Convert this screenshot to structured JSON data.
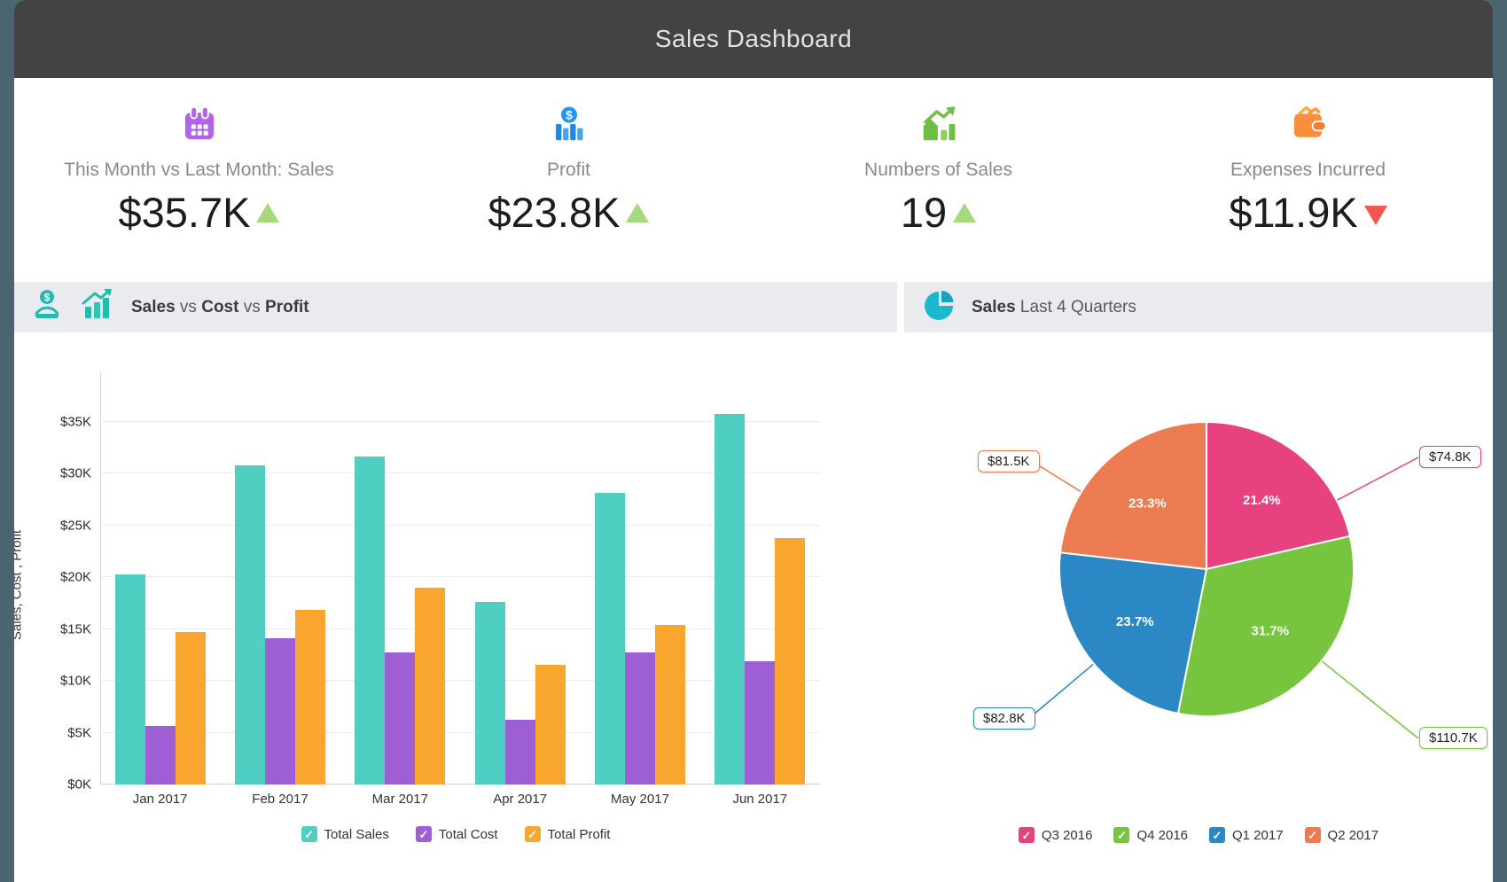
{
  "header": {
    "title": "Sales Dashboard"
  },
  "kpis": [
    {
      "icon": "calendar-icon",
      "label": "This Month vs Last Month: Sales",
      "value": "$35.7K",
      "trend": "up"
    },
    {
      "icon": "profit-bars-icon",
      "label": "Profit",
      "value": "$23.8K",
      "trend": "up"
    },
    {
      "icon": "sales-growth-icon",
      "label": "Numbers of Sales",
      "value": "19",
      "trend": "up"
    },
    {
      "icon": "wallet-icon",
      "label": "Expenses Incurred",
      "value": "$11.9K",
      "trend": "down"
    }
  ],
  "panels": [
    {
      "icons": [
        "money-hand-icon",
        "growth-chart-icon"
      ],
      "title_parts": [
        {
          "text": "Sales",
          "bold": true
        },
        {
          "text": " vs ",
          "bold": false
        },
        {
          "text": "Cost",
          "bold": true
        },
        {
          "text": " vs ",
          "bold": false
        },
        {
          "text": "Profit",
          "bold": true
        }
      ]
    },
    {
      "icons": [
        "pie-chart-icon"
      ],
      "title_parts": [
        {
          "text": "Sales",
          "bold": true
        },
        {
          "text": " Last 4 Quarters",
          "bold": false
        }
      ]
    }
  ],
  "chart_data": [
    {
      "type": "bar",
      "title": "Sales vs Cost vs Profit",
      "categories": [
        "Jan 2017",
        "Feb 2017",
        "Mar 2017",
        "Apr 2017",
        "May 2017",
        "Jun 2017"
      ],
      "series": [
        {
          "name": "Total Sales",
          "color": "#4fcec2",
          "values": [
            20.3,
            30.8,
            31.6,
            17.6,
            28.1,
            35.7
          ]
        },
        {
          "name": "Total Cost",
          "color": "#9d5fd3",
          "values": [
            5.6,
            14.1,
            12.7,
            6.2,
            12.7,
            11.9
          ]
        },
        {
          "name": "Total Profit",
          "color": "#f9a62e",
          "values": [
            14.7,
            16.8,
            19.0,
            11.5,
            15.4,
            23.8
          ]
        }
      ],
      "ylabel": "Sales, Cost , Profit",
      "yticks": [
        "$0K",
        "$5K",
        "$10K",
        "$15K",
        "$20K",
        "$25K",
        "$30K",
        "$35K"
      ],
      "ylim": [
        0,
        35
      ],
      "unit": "K USD",
      "grid": true,
      "legend_position": "bottom"
    },
    {
      "type": "pie",
      "title": "Sales Last 4 Quarters",
      "slices": [
        {
          "label": "Q3 2016",
          "percent": 21.4,
          "percent_label": "21.4%",
          "amount": "$74.8K",
          "color": "#e84180"
        },
        {
          "label": "Q4 2016",
          "percent": 31.7,
          "percent_label": "31.7%",
          "amount": "$110.7K",
          "color": "#77c53e"
        },
        {
          "label": "Q1 2017",
          "percent": 23.7,
          "percent_label": "23.7%",
          "amount": "$82.8K",
          "color": "#2c87c5"
        },
        {
          "label": "Q2 2017",
          "percent": 23.3,
          "percent_label": "23.3%",
          "amount": "$81.5K",
          "color": "#ec7b52"
        }
      ],
      "start_angle_deg": -90,
      "direction": "clockwise",
      "legend_position": "bottom"
    }
  ],
  "colors": {
    "background": "#4b6570",
    "header_bg": "#434343",
    "panel_header_bg": "#e9ebee",
    "trend_up": "#a6d97c",
    "trend_down": "#f4574f",
    "kpi_calendar": "#b164ea",
    "kpi_profit": "#2196f3",
    "kpi_sales": "#6fbf44",
    "kpi_wallet": "#f98f3d",
    "panel_icon_teal": "#26b9ae",
    "panel_icon_cyan": "#1cb8cd"
  }
}
